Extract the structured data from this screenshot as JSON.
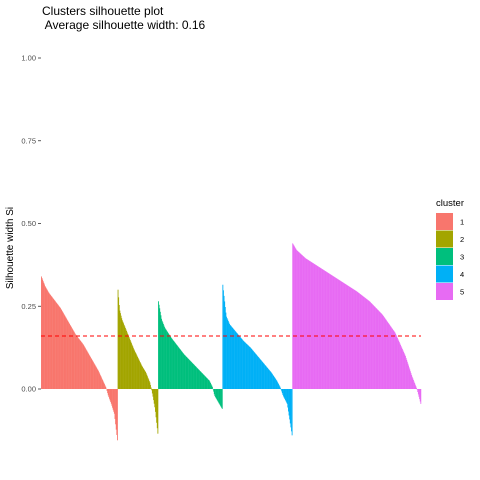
{
  "chart_data": {
    "type": "area",
    "title": "Clusters silhouette plot",
    "subtitle": " Average silhouette width: 0.16",
    "xlabel": "",
    "ylabel": "Silhouette width Si",
    "ylim": [
      -0.18,
      1.0
    ],
    "y_ticks": [
      "0.00",
      "0.25",
      "0.50",
      "0.75",
      "1.00"
    ],
    "y_tick_values": [
      0.0,
      0.25,
      0.5,
      0.75,
      1.0
    ],
    "grid": false,
    "legend": {
      "title": "cluster",
      "position": "right",
      "entries": [
        "1",
        "2",
        "3",
        "4",
        "5"
      ]
    },
    "average_silhouette": 0.16,
    "average_line_color": "#ff0000",
    "series": [
      {
        "name": "1",
        "color": "#F8766D",
        "count": 125,
        "profile": [
          [
            0.0,
            0.34
          ],
          [
            0.05,
            0.31
          ],
          [
            0.1,
            0.29
          ],
          [
            0.15,
            0.275
          ],
          [
            0.2,
            0.26
          ],
          [
            0.25,
            0.245
          ],
          [
            0.3,
            0.225
          ],
          [
            0.35,
            0.205
          ],
          [
            0.4,
            0.185
          ],
          [
            0.45,
            0.165
          ],
          [
            0.5,
            0.15
          ],
          [
            0.55,
            0.135
          ],
          [
            0.6,
            0.115
          ],
          [
            0.65,
            0.095
          ],
          [
            0.7,
            0.075
          ],
          [
            0.75,
            0.055
          ],
          [
            0.8,
            0.03
          ],
          [
            0.85,
            0.005
          ],
          [
            0.88,
            -0.02
          ],
          [
            0.92,
            -0.045
          ],
          [
            0.96,
            -0.075
          ],
          [
            1.0,
            -0.155
          ]
        ]
      },
      {
        "name": "2",
        "color": "#A3A500",
        "count": 66,
        "profile": [
          [
            0.0,
            0.3
          ],
          [
            0.04,
            0.24
          ],
          [
            0.1,
            0.21
          ],
          [
            0.2,
            0.18
          ],
          [
            0.3,
            0.15
          ],
          [
            0.4,
            0.12
          ],
          [
            0.5,
            0.095
          ],
          [
            0.6,
            0.07
          ],
          [
            0.7,
            0.05
          ],
          [
            0.8,
            0.02
          ],
          [
            0.84,
            0.0
          ],
          [
            0.88,
            -0.025
          ],
          [
            0.93,
            -0.06
          ],
          [
            1.0,
            -0.135
          ]
        ]
      },
      {
        "name": "3",
        "color": "#00BF7D",
        "count": 105,
        "profile": [
          [
            0.0,
            0.265
          ],
          [
            0.05,
            0.21
          ],
          [
            0.1,
            0.185
          ],
          [
            0.2,
            0.155
          ],
          [
            0.3,
            0.13
          ],
          [
            0.4,
            0.105
          ],
          [
            0.5,
            0.085
          ],
          [
            0.6,
            0.065
          ],
          [
            0.7,
            0.045
          ],
          [
            0.8,
            0.025
          ],
          [
            0.85,
            0.005
          ],
          [
            0.88,
            -0.02
          ],
          [
            0.94,
            -0.04
          ],
          [
            1.0,
            -0.06
          ]
        ]
      },
      {
        "name": "4",
        "color": "#00B0F6",
        "count": 114,
        "profile": [
          [
            0.0,
            0.315
          ],
          [
            0.05,
            0.22
          ],
          [
            0.1,
            0.195
          ],
          [
            0.2,
            0.17
          ],
          [
            0.3,
            0.145
          ],
          [
            0.4,
            0.125
          ],
          [
            0.5,
            0.1
          ],
          [
            0.6,
            0.075
          ],
          [
            0.7,
            0.05
          ],
          [
            0.78,
            0.025
          ],
          [
            0.83,
            0.005
          ],
          [
            0.87,
            -0.02
          ],
          [
            0.93,
            -0.045
          ],
          [
            1.0,
            -0.14
          ]
        ]
      },
      {
        "name": "5",
        "color": "#E76BF3",
        "count": 210,
        "profile": [
          [
            0.0,
            0.44
          ],
          [
            0.03,
            0.42
          ],
          [
            0.1,
            0.395
          ],
          [
            0.2,
            0.37
          ],
          [
            0.3,
            0.345
          ],
          [
            0.4,
            0.32
          ],
          [
            0.5,
            0.295
          ],
          [
            0.6,
            0.265
          ],
          [
            0.7,
            0.225
          ],
          [
            0.8,
            0.17
          ],
          [
            0.88,
            0.1
          ],
          [
            0.93,
            0.04
          ],
          [
            0.97,
            0.0
          ],
          [
            1.0,
            -0.045
          ]
        ]
      }
    ]
  }
}
